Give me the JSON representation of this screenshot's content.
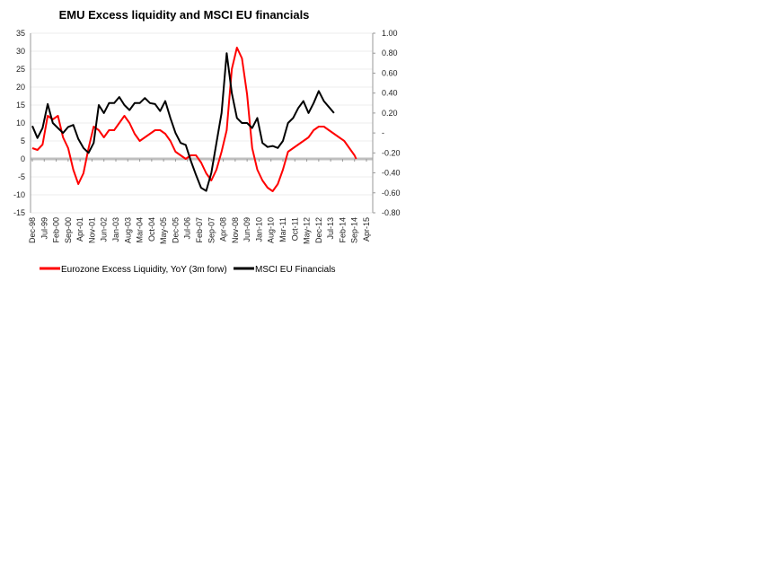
{
  "chart_data": {
    "type": "line",
    "title": "EMU Excess liquidity and MSCI EU financials",
    "xlabel": "",
    "ylabel": "",
    "y_left": {
      "ticks": [
        "35",
        "30",
        "25",
        "20",
        "15",
        "10",
        "5",
        "0",
        "-5",
        "-10",
        "-15"
      ],
      "range": [
        -15,
        35
      ],
      "step": 5
    },
    "y_right": {
      "ticks": [
        "1.00",
        "0.80",
        "0.60",
        "0.40",
        "0.20",
        "-",
        "-0.20",
        "-0.40",
        "-0.60",
        "-0.80"
      ],
      "range": [
        -0.8,
        1.0
      ],
      "step": 0.2
    },
    "x_tick_labels": [
      "Dec-98",
      "Jul-99",
      "Feb-00",
      "Sep-00",
      "Apr-01",
      "Nov-01",
      "Jun-02",
      "Jan-03",
      "Aug-03",
      "Mar-04",
      "Oct-04",
      "May-05",
      "Dec-05",
      "Jul-06",
      "Feb-07",
      "Sep-07",
      "Apr-08",
      "Nov-08",
      "Jun-09",
      "Jan-10",
      "Aug-10",
      "Mar-11",
      "Oct-11",
      "May-12",
      "Dec-12",
      "Jul-13",
      "Feb-14",
      "Sep-14",
      "Apr-15"
    ],
    "x_months_total": 196,
    "grid": true,
    "legend_position": "bottom",
    "series": [
      {
        "name": "Eurozone Excess Liquidity, YoY (3m forw)",
        "color": "#ff0000",
        "axis": "left",
        "month_index": [
          0,
          3,
          6,
          9,
          12,
          15,
          18,
          21,
          24,
          27,
          30,
          33,
          36,
          39,
          42,
          45,
          48,
          51,
          54,
          57,
          60,
          63,
          66,
          69,
          72,
          75,
          78,
          81,
          84,
          87,
          90,
          93,
          96,
          99,
          102,
          105,
          108,
          111,
          114,
          117,
          120,
          123,
          126,
          129,
          132,
          135,
          138,
          141,
          144,
          147,
          150,
          153,
          156,
          159,
          162,
          165,
          168,
          171,
          174,
          177,
          180,
          183,
          186,
          189,
          190
        ],
        "values": [
          3,
          2.5,
          4,
          12,
          11,
          12,
          6,
          3,
          -3,
          -7,
          -4,
          3,
          9,
          8,
          6,
          8,
          8,
          10,
          12,
          10,
          7,
          5,
          6,
          7,
          8,
          8,
          7,
          5,
          2,
          1,
          0,
          1,
          1,
          -1,
          -4,
          -6,
          -3,
          2,
          8,
          25,
          31,
          28,
          18,
          3,
          -3,
          -6,
          -8,
          -9,
          -7,
          -3,
          2,
          3,
          4,
          5,
          6,
          8,
          9,
          9,
          8,
          7,
          6,
          5,
          3,
          1,
          0
        ],
        "values_note": "approximate, read from chart"
      },
      {
        "name": "MSCI EU Financials",
        "color": "#000000",
        "axis": "right",
        "month_index": [
          0,
          3,
          6,
          9,
          12,
          15,
          18,
          21,
          24,
          27,
          30,
          33,
          36,
          39,
          42,
          45,
          48,
          51,
          54,
          57,
          60,
          63,
          66,
          69,
          72,
          75,
          78,
          81,
          84,
          87,
          90,
          93,
          96,
          99,
          102,
          105,
          108,
          111,
          114,
          117,
          120,
          123,
          126,
          129,
          132,
          135,
          138,
          141,
          144,
          147,
          150,
          153,
          156,
          159,
          162,
          165,
          168,
          171,
          174,
          177
        ],
        "values": [
          0.07,
          -0.05,
          0.05,
          0.29,
          0.1,
          0.05,
          0.0,
          0.06,
          0.08,
          -0.06,
          -0.15,
          -0.2,
          -0.1,
          0.28,
          0.2,
          0.3,
          0.3,
          0.36,
          0.28,
          0.23,
          0.3,
          0.3,
          0.35,
          0.3,
          0.29,
          0.22,
          0.32,
          0.15,
          0.0,
          -0.1,
          -0.12,
          -0.28,
          -0.42,
          -0.55,
          -0.58,
          -0.4,
          -0.1,
          0.2,
          0.8,
          0.4,
          0.15,
          0.1,
          0.1,
          0.05,
          0.15,
          -0.1,
          -0.14,
          -0.13,
          -0.15,
          -0.08,
          0.1,
          0.15,
          0.25,
          0.32,
          0.2,
          0.3,
          0.42,
          0.32,
          0.26,
          0.2
        ],
        "values_note": "approximate, read from chart"
      }
    ]
  }
}
